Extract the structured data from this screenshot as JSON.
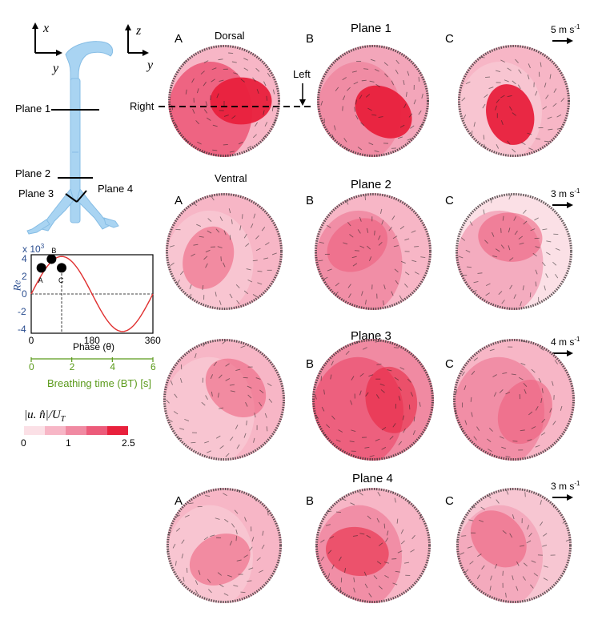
{
  "axes_labels": {
    "x": "x",
    "y": "y",
    "z": "z",
    "y2": "y"
  },
  "airway_planes": [
    "Plane 1",
    "Plane 2",
    "Plane 3",
    "Plane 4"
  ],
  "orientation": {
    "dorsal": "Dorsal",
    "ventral": "Ventral",
    "left": "Left",
    "right": "Right"
  },
  "panel_letters": [
    "A",
    "B",
    "C"
  ],
  "planes": [
    {
      "title": "Plane 1",
      "scale": "5 m s",
      "scale_exp": "-1"
    },
    {
      "title": "Plane 2",
      "scale": "3 m s",
      "scale_exp": "-1"
    },
    {
      "title": "Plane 3",
      "scale": "4 m s",
      "scale_exp": "-1"
    },
    {
      "title": "Plane 4",
      "scale": "3 m s",
      "scale_exp": "-1"
    }
  ],
  "colorbar": {
    "label": "|u. n̂|/U",
    "label_sub": "T",
    "ticks": [
      "0",
      "1",
      "2.5"
    ],
    "colors": [
      "#fbe0e6",
      "#f7b6c6",
      "#f08aa2",
      "#ec5b7a",
      "#e8203c"
    ]
  },
  "chart_data": {
    "type": "line",
    "ylabel": "Re",
    "y_multiplier": "x 10",
    "y_multiplier_exp": "3",
    "xlabel": "Phase (θ)",
    "x2label": "Breathing time (BT) [s]",
    "x_ticks": [
      "0",
      "180",
      "360"
    ],
    "x2_ticks": [
      "0",
      "2",
      "4",
      "6"
    ],
    "y_ticks": [
      "4",
      "2",
      "0",
      "-2",
      "-4"
    ],
    "xlim": [
      0,
      360
    ],
    "ylim": [
      -4.5,
      4.5
    ],
    "x": [
      0,
      30,
      60,
      90,
      120,
      150,
      180,
      210,
      240,
      270,
      300,
      330,
      360
    ],
    "y": [
      0,
      2.4,
      3.9,
      4.3,
      3.8,
      2.3,
      0,
      -2.3,
      -3.8,
      -4.3,
      -3.9,
      -2.4,
      0
    ],
    "points": [
      {
        "label": "A",
        "x": 30,
        "y": 3.0
      },
      {
        "label": "B",
        "x": 60,
        "y": 4.0
      },
      {
        "label": "C",
        "x": 90,
        "y": 3.0
      }
    ],
    "series_color": "#e03030"
  }
}
